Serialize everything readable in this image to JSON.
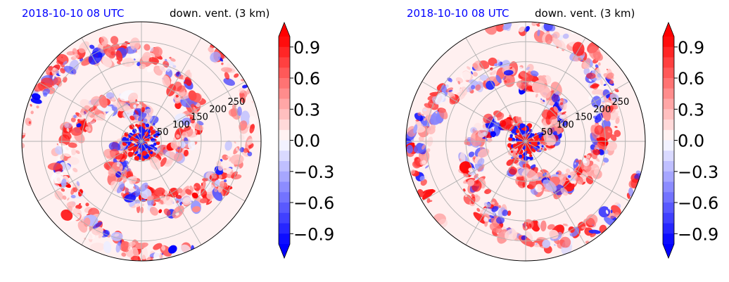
{
  "chart_data": [
    {
      "type": "heatmap",
      "projection": "polar",
      "title_left": "2018-10-10 08 UTC",
      "title_right": "down. vent. (3 km)",
      "radial_ticks": [
        "50",
        "100",
        "150",
        "200",
        "250"
      ],
      "radial_values": [
        50,
        100,
        150,
        200,
        250
      ],
      "rmax": 300,
      "angular_gridlines_deg": [
        0,
        30,
        60,
        90,
        120,
        150,
        180,
        210,
        240,
        270,
        300,
        330
      ],
      "colorbar": {
        "cmap": "bwr",
        "vmin": -1.0,
        "vmax": 1.0,
        "extend": "both",
        "ticks": [
          "0.9",
          "0.6",
          "0.3",
          "0.0",
          "−0.3",
          "−0.6",
          "−0.9"
        ],
        "tick_values": [
          0.9,
          0.6,
          0.3,
          0.0,
          -0.3,
          -0.6,
          -0.9
        ]
      }
    },
    {
      "type": "heatmap",
      "projection": "polar",
      "title_left": "2018-10-10 08 UTC",
      "title_right": "down. vent. (3 km)",
      "radial_ticks": [
        "50",
        "100",
        "150",
        "200",
        "250"
      ],
      "radial_values": [
        50,
        100,
        150,
        200,
        250
      ],
      "rmax": 300,
      "angular_gridlines_deg": [
        0,
        30,
        60,
        90,
        120,
        150,
        180,
        210,
        240,
        270,
        300,
        330
      ],
      "colorbar": {
        "cmap": "bwr",
        "vmin": -1.0,
        "vmax": 1.0,
        "extend": "both",
        "ticks": [
          "0.9",
          "0.6",
          "0.3",
          "0.0",
          "−0.3",
          "−0.6",
          "−0.9"
        ],
        "tick_values": [
          0.9,
          0.6,
          0.3,
          0.0,
          -0.3,
          -0.6,
          -0.9
        ]
      }
    }
  ],
  "colors": {
    "positive": "#ff0000",
    "negative": "#0000ff",
    "neutral": "#ffffff",
    "title_left": "#0000ff",
    "grid": "#b0b0b0"
  }
}
